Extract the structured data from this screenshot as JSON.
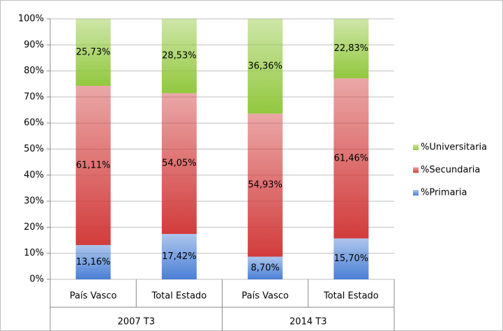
{
  "chart_data": {
    "type": "stacked_bar",
    "categories": [
      "País Vasco",
      "Total Estado",
      "País Vasco",
      "Total Estado"
    ],
    "groups": [
      "2007 T3",
      "2014 T3"
    ],
    "series": [
      {
        "name": "%Primaria",
        "color": "#4a7fd6",
        "values": [
          13.16,
          17.42,
          8.7,
          15.7
        ],
        "value_labels": [
          "13,16%",
          "17,42%",
          "8,70%",
          "15,70%"
        ]
      },
      {
        "name": "%Secundaria",
        "color": "#d23c3c",
        "values": [
          61.11,
          54.05,
          54.93,
          61.46
        ],
        "value_labels": [
          "61,11%",
          "54,05%",
          "54,93%",
          "61,46%"
        ]
      },
      {
        "name": "%Universitaria",
        "color": "#92c83e",
        "values": [
          25.73,
          28.53,
          36.36,
          22.83
        ],
        "value_labels": [
          "25,73%",
          "28,53%",
          "36,36%",
          "22,83%"
        ]
      }
    ],
    "ylim": [
      0,
      100
    ],
    "yticks": [
      {
        "value": 0,
        "label": "0%"
      },
      {
        "value": 10,
        "label": "10%"
      },
      {
        "value": 20,
        "label": "20%"
      },
      {
        "value": 30,
        "label": "30%"
      },
      {
        "value": 40,
        "label": "40%"
      },
      {
        "value": 50,
        "label": "50%"
      },
      {
        "value": 60,
        "label": "60%"
      },
      {
        "value": 70,
        "label": "70%"
      },
      {
        "value": 80,
        "label": "80%"
      },
      {
        "value": 90,
        "label": "90%"
      },
      {
        "value": 100,
        "label": "100%"
      }
    ],
    "grid": true,
    "legend": "right"
  }
}
